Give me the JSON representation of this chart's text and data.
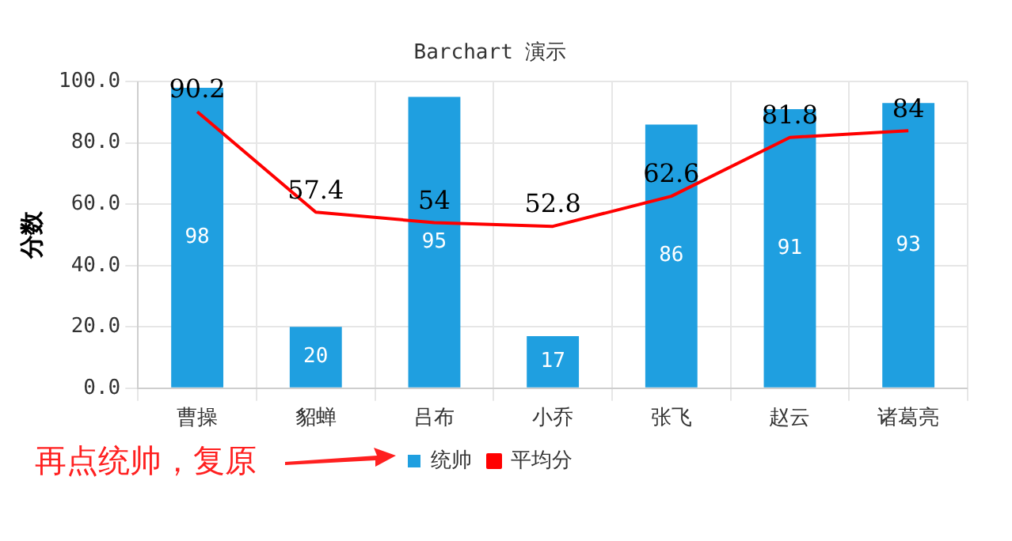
{
  "chart_data": {
    "type": "bar",
    "title": "Barchart 演示",
    "ylabel": "分数",
    "categories": [
      "曹操",
      "貂蝉",
      "吕布",
      "小乔",
      "张飞",
      "赵云",
      "诸葛亮"
    ],
    "series": [
      {
        "name": "统帅",
        "type": "bar",
        "color": "#1f9fe0",
        "values": [
          98,
          20,
          95,
          17,
          86,
          91,
          93
        ]
      },
      {
        "name": "平均分",
        "type": "line",
        "color": "#ff0000",
        "values": [
          90.2,
          57.4,
          54,
          52.8,
          62.6,
          81.8,
          84
        ]
      }
    ],
    "ylim": [
      0,
      100
    ],
    "yticks": [
      {
        "value": 0,
        "label": "0.0"
      },
      {
        "value": 20,
        "label": "20.0"
      },
      {
        "value": 40,
        "label": "40.0"
      },
      {
        "value": 60,
        "label": "60.0"
      },
      {
        "value": 80,
        "label": "80.0"
      },
      {
        "value": 100,
        "label": "100.0"
      }
    ],
    "grid": true,
    "legend": "bottom",
    "marker": "none",
    "line_style": "solid",
    "data_labels": true,
    "annotations": [
      "再点统帅，复原"
    ]
  }
}
